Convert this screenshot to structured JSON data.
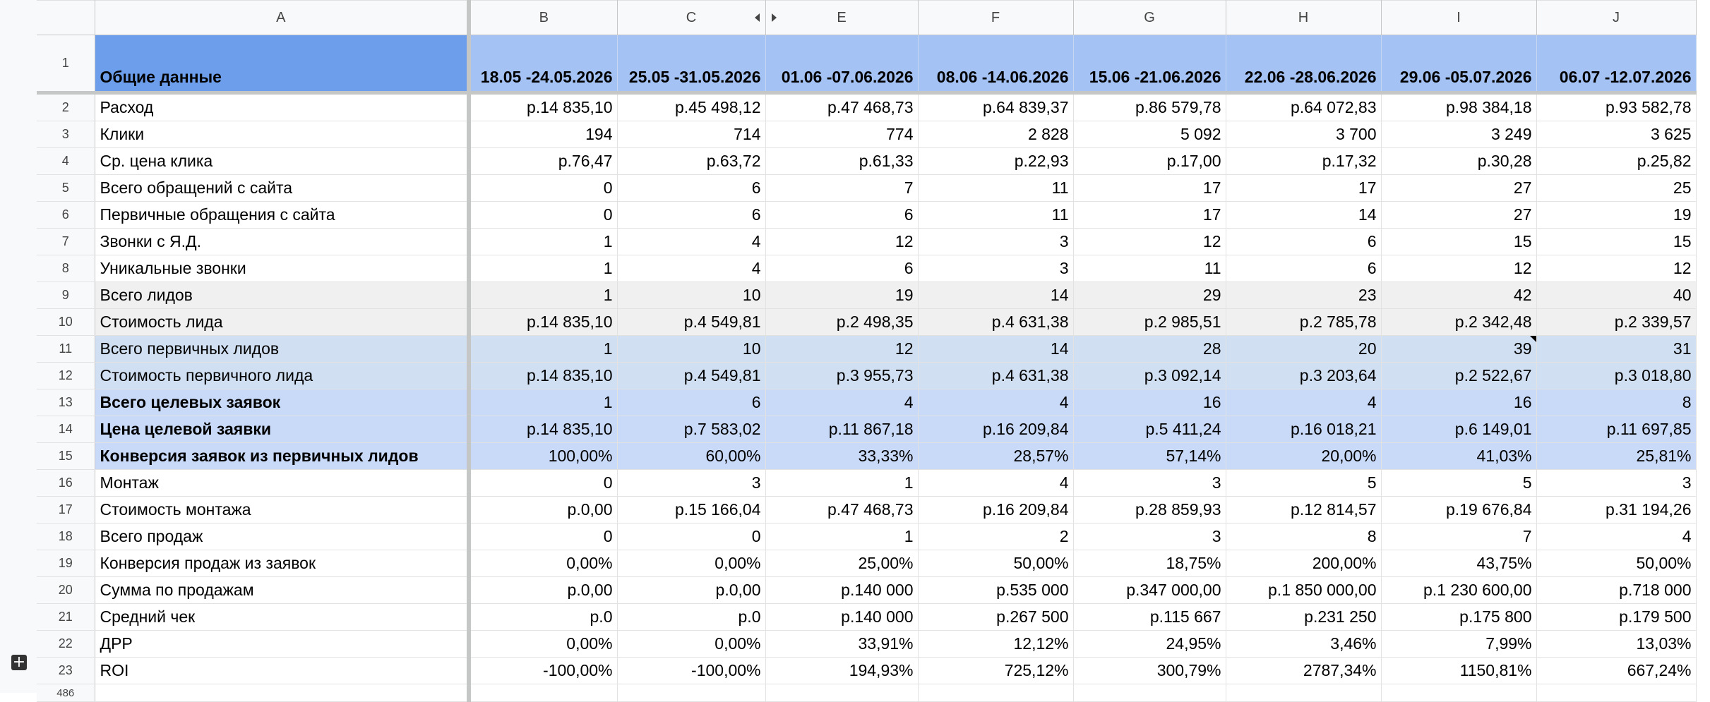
{
  "columns": [
    "A",
    "B",
    "C",
    "E",
    "F",
    "G",
    "H",
    "I",
    "J"
  ],
  "header_row": {
    "row_num": "1",
    "label": "Общие данные",
    "periods": [
      "18.05 -24.05.2026",
      "25.05 -31.05.2026",
      "01.06 -07.06.2026",
      "08.06 -14.06.2026",
      "15.06 -21.06.2026",
      "22.06 -28.06.2026",
      "29.06 -05.07.2026",
      "06.07 -12.07.2026"
    ]
  },
  "rows": [
    {
      "n": "2",
      "label": "Расход",
      "v": [
        "р.14 835,10",
        "р.45 498,12",
        "р.47 468,73",
        "р.64 839,37",
        "р.86 579,78",
        "р.64 072,83",
        "р.98 384,18",
        "р.93 582,78"
      ]
    },
    {
      "n": "3",
      "label": "Клики",
      "v": [
        "194",
        "714",
        "774",
        "2 828",
        "5 092",
        "3 700",
        "3 249",
        "3 625"
      ]
    },
    {
      "n": "4",
      "label": "Ср. цена клика",
      "v": [
        "р.76,47",
        "р.63,72",
        "р.61,33",
        "р.22,93",
        "р.17,00",
        "р.17,32",
        "р.30,28",
        "р.25,82"
      ]
    },
    {
      "n": "5",
      "label": "Всего обращений с сайта",
      "v": [
        "0",
        "6",
        "7",
        "11",
        "17",
        "17",
        "27",
        "25"
      ]
    },
    {
      "n": "6",
      "label": "Первичные обращения с сайта",
      "v": [
        "0",
        "6",
        "6",
        "11",
        "17",
        "14",
        "27",
        "19"
      ]
    },
    {
      "n": "7",
      "label": "Звонки с Я.Д.",
      "v": [
        "1",
        "4",
        "12",
        "3",
        "12",
        "6",
        "15",
        "15"
      ]
    },
    {
      "n": "8",
      "label": "Уникальные звонки",
      "v": [
        "1",
        "4",
        "6",
        "3",
        "11",
        "6",
        "12",
        "12"
      ]
    },
    {
      "n": "9",
      "label": "Всего лидов",
      "v": [
        "1",
        "10",
        "19",
        "14",
        "29",
        "23",
        "42",
        "40"
      ]
    },
    {
      "n": "10",
      "label": "Стоимость лида",
      "v": [
        "р.14 835,10",
        "р.4 549,81",
        "р.2 498,35",
        "р.4 631,38",
        "р.2 985,51",
        "р.2 785,78",
        "р.2 342,48",
        "р.2 339,57"
      ]
    },
    {
      "n": "11",
      "label": "Всего первичных лидов",
      "v": [
        "1",
        "10",
        "12",
        "14",
        "28",
        "20",
        "39",
        "31"
      ]
    },
    {
      "n": "12",
      "label": "Стоимость первичного лида",
      "v": [
        "р.14 835,10",
        "р.4 549,81",
        "р.3 955,73",
        "р.4 631,38",
        "р.3 092,14",
        "р.3 203,64",
        "р.2 522,67",
        "р.3 018,80"
      ]
    },
    {
      "n": "13",
      "label": "Всего целевых заявок",
      "v": [
        "1",
        "6",
        "4",
        "4",
        "16",
        "4",
        "16",
        "8"
      ]
    },
    {
      "n": "14",
      "label": "Цена целевой заявки",
      "v": [
        "р.14 835,10",
        "р.7 583,02",
        "р.11 867,18",
        "р.16 209,84",
        "р.5 411,24",
        "р.16 018,21",
        "р.6 149,01",
        "р.11 697,85"
      ]
    },
    {
      "n": "15",
      "label": "Конверсия заявок из первичных лидов",
      "v": [
        "100,00%",
        "60,00%",
        "33,33%",
        "28,57%",
        "57,14%",
        "20,00%",
        "41,03%",
        "25,81%"
      ]
    },
    {
      "n": "16",
      "label": "Монтаж",
      "v": [
        "0",
        "3",
        "1",
        "4",
        "3",
        "5",
        "5",
        "3"
      ]
    },
    {
      "n": "17",
      "label": "Стоимость монтажа",
      "v": [
        "р.0,00",
        "р.15 166,04",
        "р.47 468,73",
        "р.16 209,84",
        "р.28 859,93",
        "р.12 814,57",
        "р.19 676,84",
        "р.31 194,26"
      ]
    },
    {
      "n": "18",
      "label": "Всего продаж",
      "v": [
        "0",
        "0",
        "1",
        "2",
        "3",
        "8",
        "7",
        "4"
      ]
    },
    {
      "n": "19",
      "label": "Конверсия продаж из заявок",
      "v": [
        "0,00%",
        "0,00%",
        "25,00%",
        "50,00%",
        "18,75%",
        "200,00%",
        "43,75%",
        "50,00%"
      ]
    },
    {
      "n": "20",
      "label": "Сумма по продажам",
      "v": [
        "р.0,00",
        "р.0,00",
        "р.140 000",
        "р.535 000",
        "р.347 000,00",
        "р.1 850 000,00",
        "р.1 230 600,00",
        "р.718 000"
      ]
    },
    {
      "n": "21",
      "label": "Средний чек",
      "v": [
        "р.0",
        "р.0",
        "р.140 000",
        "р.267 500",
        "р.115 667",
        "р.231 250",
        "р.175 800",
        "р.179 500"
      ]
    },
    {
      "n": "22",
      "label": "ДРР",
      "v": [
        "0,00%",
        "0,00%",
        "33,91%",
        "12,12%",
        "24,95%",
        "3,46%",
        "7,99%",
        "13,03%"
      ]
    },
    {
      "n": "23",
      "label": "ROI",
      "v": [
        "-100,00%",
        "-100,00%",
        "194,93%",
        "725,12%",
        "300,79%",
        "2787,34%",
        "1150,81%",
        "667,24%"
      ]
    }
  ],
  "last_row_num": "486",
  "add_sheet_icon": "plus-icon"
}
